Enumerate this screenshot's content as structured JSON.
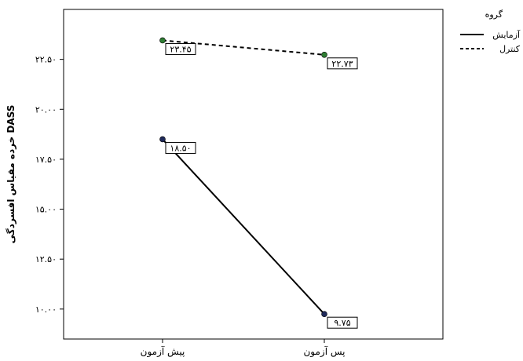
{
  "chart_data": {
    "type": "line",
    "categories": [
      "پیش آزمون",
      "پس آزمون"
    ],
    "ylabel": "خرده مقیاس افسردگی DASS",
    "xlabel": "",
    "ylim": [
      8.5,
      25
    ],
    "yticks": [
      10,
      12.5,
      15,
      17.5,
      20,
      22.5
    ],
    "ytick_labels": [
      "۱۰.۰۰",
      "۱۲.۵۰",
      "۱۵.۰۰",
      "۱۷.۵۰",
      "۲۰.۰۰",
      "۲۲.۵۰"
    ],
    "grid": false,
    "legend": {
      "title": "گروه",
      "placement": "top-right"
    },
    "series": [
      {
        "name": "آزمایش",
        "style": "solid",
        "marker_color": "#1f2a5a",
        "values": [
          18.5,
          9.75
        ],
        "labels": [
          "۱۸.۵۰",
          "۹.۷۵"
        ]
      },
      {
        "name": "کنترل",
        "style": "dashed",
        "marker_color": "#2e7d32",
        "values": [
          23.45,
          22.73
        ],
        "labels": [
          "۲۳.۴۵",
          "۲۲.۷۳"
        ]
      }
    ]
  }
}
